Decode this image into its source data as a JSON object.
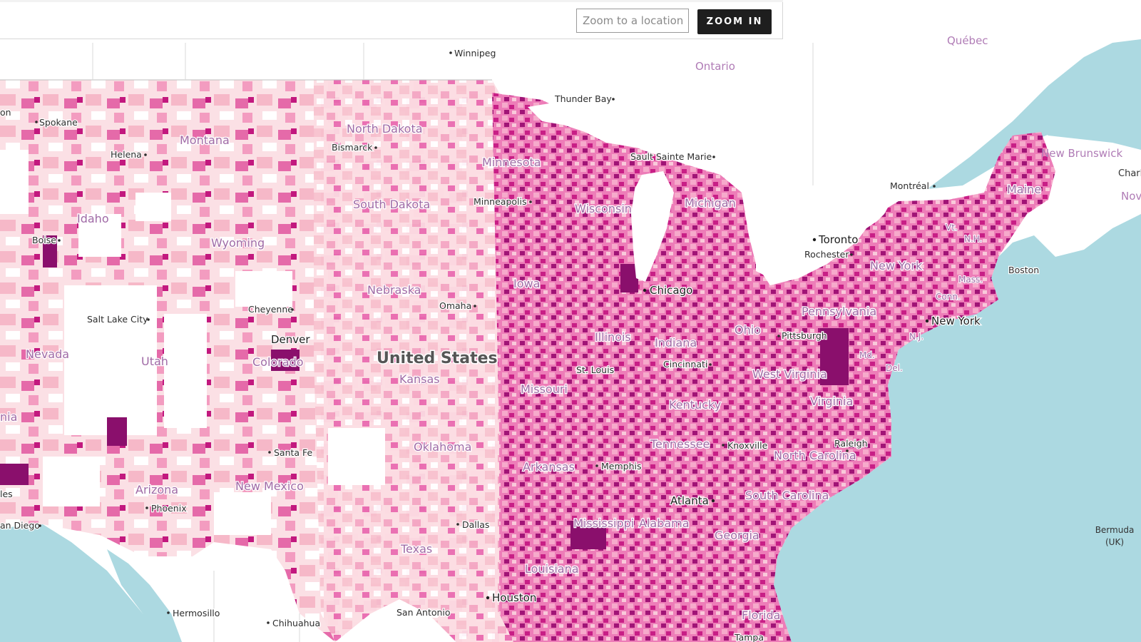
{
  "toolbar": {
    "search_placeholder": "Zoom to a location",
    "zoom_label": "ZOOM IN"
  },
  "colors": {
    "water": "#acd9e1",
    "land": "#ffffff",
    "choropleth_light": "#fbe1e6",
    "choropleth_mid": "#f08cc2",
    "choropleth_dark": "#c2187e",
    "choropleth_darkest": "#780d63",
    "state_label": "#b88fb8",
    "city_label": "#2d2d2d",
    "button_bg": "#1e1e1e"
  },
  "labels": {
    "countries": {
      "united_states": "United States"
    },
    "provinces": {
      "ontario": "Ontario",
      "quebec": "Québec",
      "new_brunswick": "New Brunswick",
      "nova": "Nov",
      "charlo": "Charlo"
    },
    "states": {
      "montana": "Montana",
      "north_dakota": "North Dakota",
      "minnesota": "Minnesota",
      "south_dakota": "South Dakota",
      "idaho": "Idaho",
      "wyoming": "Wyoming",
      "wisconsin": "Wisconsin",
      "michigan": "Michigan",
      "nebraska": "Nebraska",
      "iowa": "Iowa",
      "nevada": "Nevada",
      "utah": "Utah",
      "colorado": "Colorado",
      "kansas": "Kansas",
      "illinois": "Illinois",
      "indiana": "Indiana",
      "ohio": "Ohio",
      "pennsylvania": "Pennsylvania",
      "new_york": "New York",
      "missouri": "Missouri",
      "kentucky": "Kentucky",
      "west_virginia": "West Virginia",
      "virginia": "Virginia",
      "oklahoma": "Oklahoma",
      "arkansas": "Arkansas",
      "tennessee": "Tennessee",
      "north_carolina": "North Carolina",
      "south_carolina": "South Carolina",
      "arizona": "Arizona",
      "new_mexico": "New Mexico",
      "texas": "Texas",
      "louisiana": "Louisiana",
      "mississippi": "Mississippi",
      "alabama": "Alabama",
      "georgia": "Georgia",
      "florida": "Florida",
      "maine": "Maine",
      "vermont": "Vt.",
      "new_hampshire": "N.H.",
      "massachusetts": "Mass.",
      "connecticut": "Conn.",
      "new_jersey": "N.J.",
      "maryland": "Md.",
      "delaware": "Del.",
      "california_cut": "nia"
    },
    "cities": {
      "winnipeg": "Winnipeg",
      "thunder_bay": "Thunder Bay",
      "spokane": "Spokane",
      "helena": "Helena",
      "bismarck": "Bismarck",
      "sault_sainte_marie": "Sault Sainte Marie",
      "montreal": "Montréal",
      "minneapolis": "Minneapolis",
      "boise": "Boise",
      "toronto": "Toronto",
      "rochester": "Rochester",
      "boston": "Boston",
      "chicago": "Chicago",
      "omaha": "Omaha",
      "cheyenne": "Cheyenne",
      "salt_lake_city": "Salt Lake City",
      "new_york_city": "New York",
      "pittsburgh": "Pittsburgh",
      "denver": "Denver",
      "cincinnati": "Cincinnati",
      "st_louis": "St. Louis",
      "santa_fe": "Santa Fe",
      "knoxville": "Knoxville",
      "raleigh": "Raleigh",
      "memphis": "Memphis",
      "atlanta": "Atlanta",
      "phoenix": "Phoenix",
      "los_angeles_cut": "les",
      "san_diego_cut": "an Diego",
      "dallas": "Dallas",
      "houston": "Houston",
      "san_antonio": "San Antonio",
      "hermosillo": "Hermosillo",
      "chihuahua": "Chihuahua",
      "tampa": "Tampa",
      "bermuda": "Bermuda",
      "bermuda_uk": "(UK)",
      "oregon_cut": "on"
    }
  }
}
